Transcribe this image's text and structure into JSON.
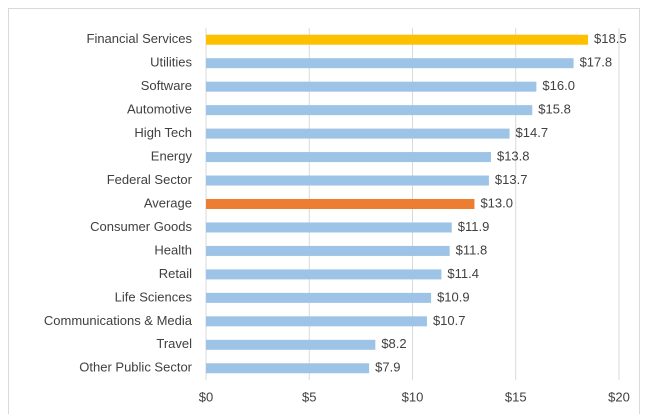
{
  "chart_data": {
    "type": "bar",
    "orientation": "horizontal",
    "categories": [
      "Financial Services",
      "Utilities",
      "Software",
      "Automotive",
      "High Tech",
      "Energy",
      "Federal Sector",
      "Average",
      "Consumer Goods",
      "Health",
      "Retail",
      "Life Sciences",
      "Communications & Media",
      "Travel",
      "Other Public Sector"
    ],
    "values": [
      18.5,
      17.8,
      16.0,
      15.8,
      14.7,
      13.8,
      13.7,
      13.0,
      11.9,
      11.8,
      11.4,
      10.9,
      10.7,
      8.2,
      7.9
    ],
    "value_labels": [
      "$18.5",
      "$17.8",
      "$16.0",
      "$15.8",
      "$14.7",
      "$13.8",
      "$13.7",
      "$13.0",
      "$11.9",
      "$11.8",
      "$11.4",
      "$10.9",
      "$10.7",
      "$8.2",
      "$7.9"
    ],
    "colors": [
      "#ffc000",
      "#9dc3e6",
      "#9dc3e6",
      "#9dc3e6",
      "#9dc3e6",
      "#9dc3e6",
      "#9dc3e6",
      "#ed7d31",
      "#9dc3e6",
      "#9dc3e6",
      "#9dc3e6",
      "#9dc3e6",
      "#9dc3e6",
      "#9dc3e6",
      "#9dc3e6"
    ],
    "xlim": [
      0,
      20
    ],
    "xticks": [
      {
        "value": 0,
        "label": "$0"
      },
      {
        "value": 5,
        "label": "$5"
      },
      {
        "value": 10,
        "label": "$10"
      },
      {
        "value": 15,
        "label": "$15"
      },
      {
        "value": 20,
        "label": "$20"
      }
    ],
    "grid": true
  }
}
